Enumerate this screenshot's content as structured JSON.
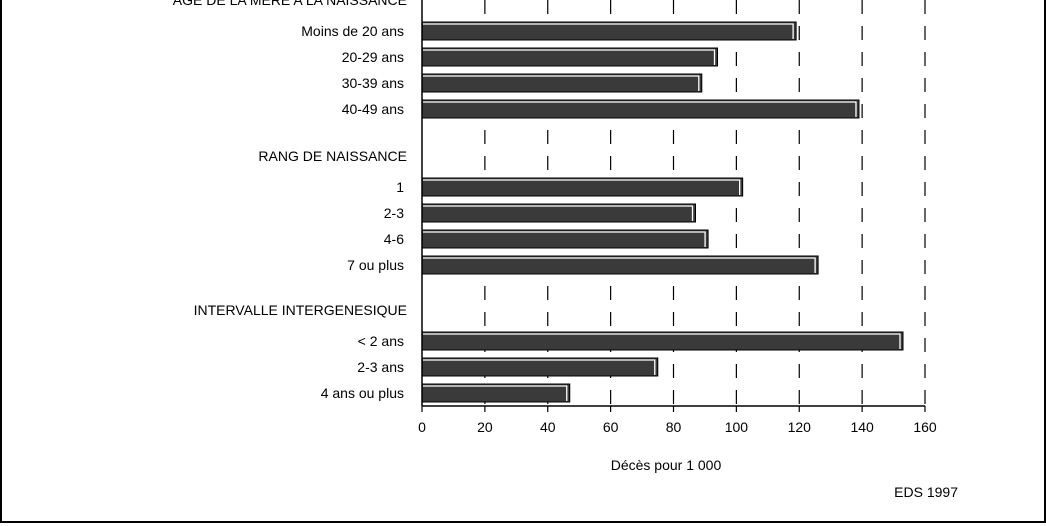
{
  "chart_data": {
    "type": "bar",
    "orientation": "horizontal",
    "xlabel": "Décès pour 1 000",
    "xlim": [
      0,
      160
    ],
    "xticks": [
      0,
      20,
      40,
      60,
      80,
      100,
      120,
      140,
      160
    ],
    "grid": "vertical dashed",
    "source": "EDS 1997",
    "groups": [
      {
        "title": "AGE DE LA MERE A LA NAISSANCE",
        "categories": [
          "Moins de 20 ans",
          "20-29 ans",
          "30-39 ans",
          "40-49 ans"
        ],
        "values": [
          119,
          94,
          89,
          139
        ]
      },
      {
        "title": "RANG DE NAISSANCE",
        "categories": [
          "1",
          "2-3",
          "4-6",
          "7 ou plus"
        ],
        "values": [
          102,
          87,
          91,
          126
        ]
      },
      {
        "title": "INTERVALLE INTERGENESIQUE",
        "categories": [
          "< 2 ans",
          "2-3 ans",
          "4 ans ou plus"
        ],
        "values": [
          153,
          75,
          47
        ]
      }
    ]
  },
  "colors": {
    "bar": "#3a3a3a",
    "bar_highlight": "#ffffff",
    "axis": "#000000"
  }
}
